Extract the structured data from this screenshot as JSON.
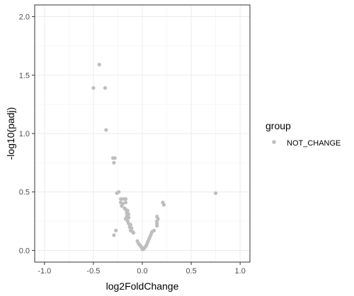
{
  "chart_data": {
    "type": "scatter",
    "title": "",
    "xlabel": "log2FoldChange",
    "ylabel": "-log10(padj)",
    "xlim": [
      -1.1,
      1.1
    ],
    "ylim": [
      -0.1,
      2.1
    ],
    "xticks": [
      -1.0,
      -0.5,
      0.0,
      0.5,
      1.0
    ],
    "yticks": [
      0.0,
      0.5,
      1.0,
      1.5,
      2.0
    ],
    "xtick_labels": [
      "-1.0",
      "-0.5",
      "0.0",
      "0.5",
      "1.0"
    ],
    "ytick_labels": [
      "0.0",
      "0.5",
      "1.0",
      "1.5",
      "2.0"
    ],
    "grid": true,
    "legend": {
      "title": "group",
      "position": "right",
      "entries": [
        {
          "label": "NOT_CHANGE",
          "color": "#bebebe"
        }
      ]
    },
    "series": [
      {
        "name": "NOT_CHANGE",
        "color": "#bebebe",
        "points": [
          [
            -0.44,
            1.59
          ],
          [
            -0.5,
            1.39
          ],
          [
            -0.38,
            1.39
          ],
          [
            -0.37,
            1.03
          ],
          [
            -0.3,
            0.79
          ],
          [
            -0.28,
            0.79
          ],
          [
            -0.29,
            0.75
          ],
          [
            -0.26,
            0.49
          ],
          [
            -0.24,
            0.5
          ],
          [
            -0.22,
            0.44
          ],
          [
            -0.19,
            0.44
          ],
          [
            -0.17,
            0.44
          ],
          [
            -0.22,
            0.41
          ],
          [
            -0.2,
            0.4
          ],
          [
            -0.17,
            0.41
          ],
          [
            -0.21,
            0.38
          ],
          [
            -0.18,
            0.36
          ],
          [
            -0.17,
            0.35
          ],
          [
            -0.15,
            0.34
          ],
          [
            -0.16,
            0.32
          ],
          [
            -0.14,
            0.31
          ],
          [
            -0.16,
            0.29
          ],
          [
            -0.14,
            0.28
          ],
          [
            -0.17,
            0.27
          ],
          [
            -0.15,
            0.25
          ],
          [
            -0.14,
            0.23
          ],
          [
            -0.12,
            0.22
          ],
          [
            -0.13,
            0.2
          ],
          [
            -0.11,
            0.19
          ],
          [
            -0.12,
            0.17
          ],
          [
            -0.1,
            0.16
          ],
          [
            -0.09,
            0.15
          ],
          [
            -0.27,
            0.17
          ],
          [
            -0.29,
            0.13
          ],
          [
            -0.05,
            0.08
          ],
          [
            -0.04,
            0.06
          ],
          [
            -0.03,
            0.05
          ],
          [
            -0.02,
            0.04
          ],
          [
            -0.01,
            0.03
          ],
          [
            0.0,
            0.02
          ],
          [
            0.0,
            0.01
          ],
          [
            0.01,
            0.01
          ],
          [
            0.02,
            0.02
          ],
          [
            0.03,
            0.03
          ],
          [
            0.04,
            0.04
          ],
          [
            0.05,
            0.06
          ],
          [
            0.06,
            0.08
          ],
          [
            0.07,
            0.1
          ],
          [
            0.08,
            0.12
          ],
          [
            0.09,
            0.14
          ],
          [
            0.1,
            0.16
          ],
          [
            0.12,
            0.17
          ],
          [
            0.15,
            0.21
          ],
          [
            0.15,
            0.23
          ],
          [
            0.15,
            0.25
          ],
          [
            0.16,
            0.27
          ],
          [
            0.15,
            0.29
          ],
          [
            0.21,
            0.41
          ],
          [
            0.22,
            0.39
          ],
          [
            0.75,
            0.49
          ]
        ]
      }
    ]
  }
}
